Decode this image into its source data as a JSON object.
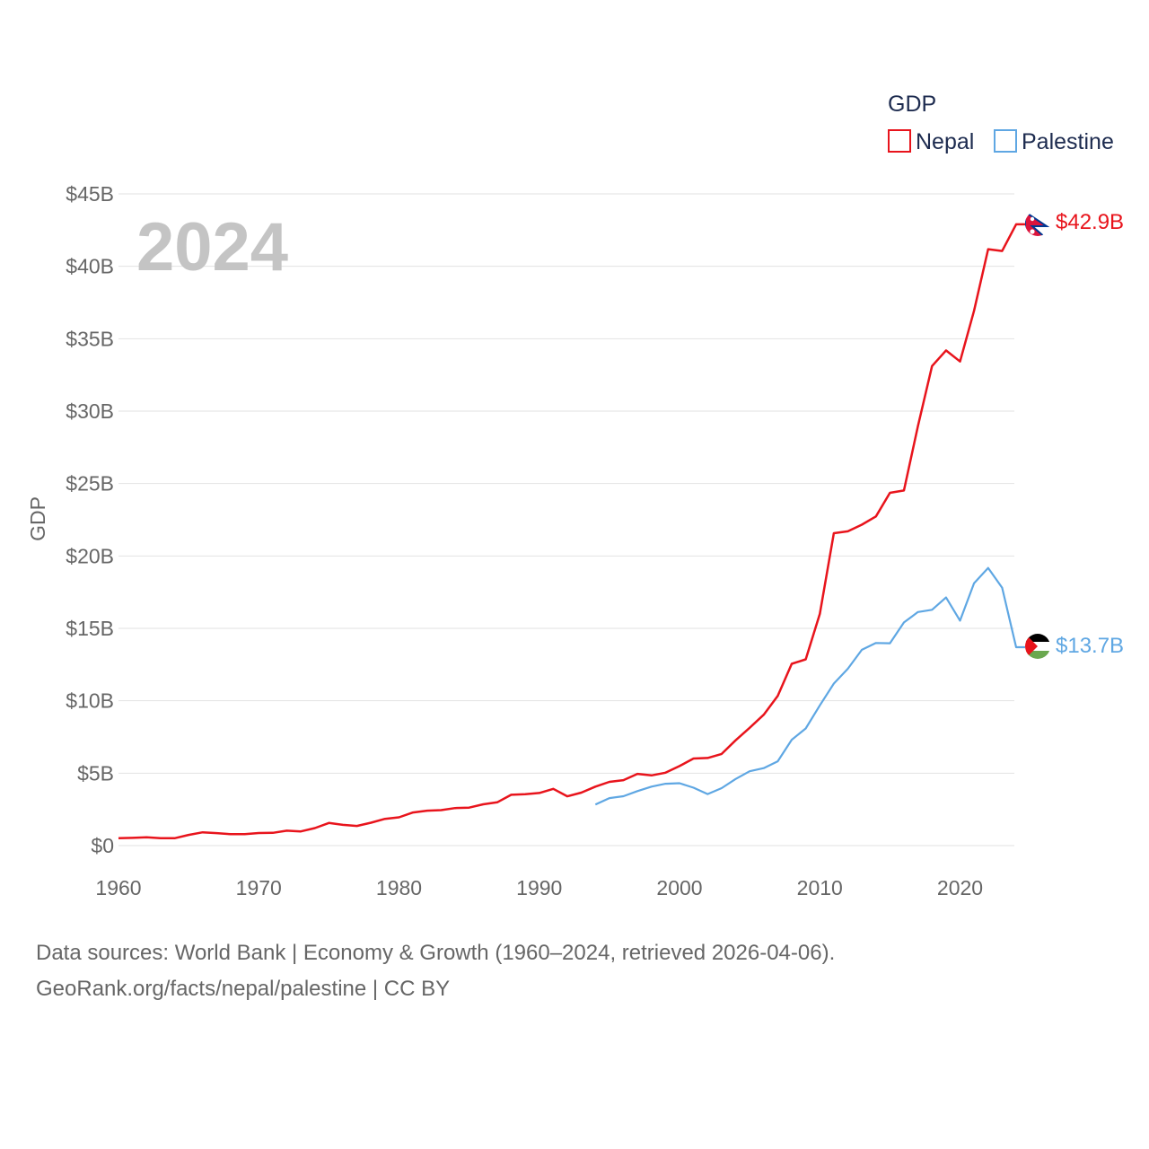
{
  "chart_data": {
    "type": "line",
    "title": "",
    "year_label": "2024",
    "legend_title": "GDP",
    "ylabel": "GDP",
    "xlabel": "",
    "xlim": [
      1960,
      2024
    ],
    "ylim": [
      0,
      45
    ],
    "y_unit": "billion USD",
    "x_ticks": [
      1960,
      1970,
      1980,
      1990,
      2000,
      2010,
      2020
    ],
    "x_tick_labels": [
      "1960",
      "1970",
      "1980",
      "1990",
      "2000",
      "2010",
      "2020"
    ],
    "y_ticks": [
      0,
      5,
      10,
      15,
      20,
      25,
      30,
      35,
      40,
      45
    ],
    "y_tick_labels": [
      "$0",
      "$5B",
      "$10B",
      "$15B",
      "$20B",
      "$25B",
      "$30B",
      "$35B",
      "$40B",
      "$45B"
    ],
    "grid": true,
    "legend_position": "top-right",
    "series": [
      {
        "name": "Nepal",
        "color": "#e8141c",
        "end_label": "$42.9B",
        "flag": "nepal-flag",
        "x": [
          1960,
          1961,
          1962,
          1963,
          1964,
          1965,
          1966,
          1967,
          1968,
          1969,
          1970,
          1971,
          1972,
          1973,
          1974,
          1975,
          1976,
          1977,
          1978,
          1979,
          1980,
          1981,
          1982,
          1983,
          1984,
          1985,
          1986,
          1987,
          1988,
          1989,
          1990,
          1991,
          1992,
          1993,
          1994,
          1995,
          1996,
          1997,
          1998,
          1999,
          2000,
          2001,
          2002,
          2003,
          2004,
          2005,
          2006,
          2007,
          2008,
          2009,
          2010,
          2011,
          2012,
          2013,
          2014,
          2015,
          2016,
          2017,
          2018,
          2019,
          2020,
          2021,
          2022,
          2023,
          2024
        ],
        "values": [
          0.51,
          0.53,
          0.57,
          0.51,
          0.51,
          0.74,
          0.92,
          0.86,
          0.79,
          0.79,
          0.87,
          0.88,
          1.03,
          0.98,
          1.21,
          1.56,
          1.43,
          1.36,
          1.58,
          1.85,
          1.95,
          2.29,
          2.41,
          2.45,
          2.59,
          2.62,
          2.85,
          2.99,
          3.51,
          3.55,
          3.63,
          3.92,
          3.4,
          3.66,
          4.07,
          4.4,
          4.52,
          4.95,
          4.85,
          5.03,
          5.49,
          6.01,
          6.05,
          6.33,
          7.27,
          8.13,
          9.04,
          10.33,
          12.55,
          12.86,
          16.0,
          21.57,
          21.7,
          22.16,
          22.73,
          24.36,
          24.52,
          28.97,
          33.11,
          34.19,
          33.43,
          36.93,
          41.18,
          41.06,
          42.9
        ]
      },
      {
        "name": "Palestine",
        "color": "#5fa7e3",
        "end_label": "$13.7B",
        "flag": "palestine-flag",
        "x": [
          1994,
          1995,
          1996,
          1997,
          1998,
          1999,
          2000,
          2001,
          2002,
          2003,
          2004,
          2005,
          2006,
          2007,
          2008,
          2009,
          2010,
          2011,
          2012,
          2013,
          2014,
          2015,
          2016,
          2017,
          2018,
          2019,
          2020,
          2021,
          2022,
          2023,
          2024
        ],
        "values": [
          2.84,
          3.28,
          3.41,
          3.76,
          4.07,
          4.27,
          4.31,
          4.0,
          3.56,
          3.97,
          4.6,
          5.13,
          5.35,
          5.82,
          7.31,
          8.09,
          9.68,
          11.19,
          12.21,
          13.52,
          13.99,
          13.97,
          15.41,
          16.13,
          16.28,
          17.13,
          15.53,
          18.11,
          19.17,
          17.81,
          13.7
        ]
      }
    ]
  },
  "source": {
    "line1": "Data sources: World Bank | Economy & Growth (1960–2024, retrieved 2026-04-06).",
    "line2": "GeoRank.org/facts/nepal/palestine | CC BY"
  }
}
